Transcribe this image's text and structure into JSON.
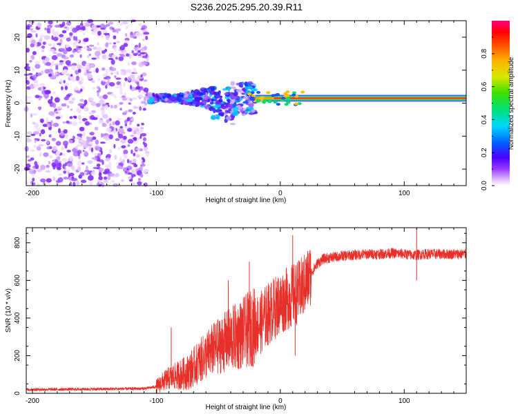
{
  "title": "S236.2025.295.20.39.R11",
  "chart_data": [
    {
      "type": "heatmap",
      "xlabel": "Height of straight line (km)",
      "ylabel": "Frequency (Hz)",
      "xlim": [
        -205,
        150
      ],
      "ylim": [
        -25,
        25
      ],
      "xticks": [
        -200,
        -100,
        0,
        100
      ],
      "xtick_labels": [
        "-200",
        "-100",
        "0",
        "100"
      ],
      "yticks": [
        -20,
        -10,
        0,
        10,
        20
      ],
      "ytick_labels": [
        "-20",
        "-10",
        "0",
        "10",
        "20"
      ],
      "colorbar": {
        "label": "Normalized spectral amplitude",
        "range": [
          0,
          1
        ],
        "ticks": [
          0.0,
          0.2,
          0.4,
          0.6,
          0.8
        ],
        "tick_labels": [
          "0.0",
          "0.2",
          "0.4",
          "0.6",
          "0.8"
        ]
      },
      "features": {
        "noise_region_x": [
          -205,
          -107
        ],
        "scatter_region_x": [
          -107,
          -20
        ],
        "tone_region_x": [
          -20,
          150
        ],
        "tone_frequency_hz": 1.5
      }
    },
    {
      "type": "line",
      "xlabel": "Height of straight line (km)",
      "ylabel": "SNR (10 * v/v)",
      "xlim": [
        -205,
        150
      ],
      "ylim": [
        0,
        880
      ],
      "xticks": [
        -200,
        -100,
        0,
        100
      ],
      "xtick_labels": [
        "-200",
        "-100",
        "0",
        "100"
      ],
      "yticks": [
        0,
        200,
        400,
        600,
        800
      ],
      "ytick_labels": [
        "0",
        "200",
        "400",
        "600",
        "800"
      ],
      "color": "#e8302a",
      "series": [
        {
          "name": "SNR",
          "x": [
            -205,
            -150,
            -110,
            -100,
            -95,
            -90,
            -85,
            -80,
            -75,
            -70,
            -65,
            -60,
            -55,
            -50,
            -45,
            -40,
            -35,
            -30,
            -25,
            -20,
            -15,
            -10,
            -5,
            0,
            5,
            10,
            15,
            20,
            25,
            30,
            35,
            40,
            50,
            60,
            70,
            80,
            90,
            100,
            105,
            110,
            115,
            120,
            130,
            140,
            150
          ],
          "y": [
            20,
            22,
            25,
            35,
            60,
            80,
            90,
            100,
            110,
            140,
            170,
            200,
            230,
            250,
            270,
            290,
            300,
            320,
            340,
            360,
            380,
            420,
            450,
            480,
            500,
            520,
            540,
            580,
            640,
            690,
            715,
            720,
            730,
            735,
            740,
            740,
            745,
            740,
            735,
            735,
            740,
            740,
            740,
            740,
            740
          ]
        }
      ],
      "spikes": [
        {
          "x": -88,
          "y": 350
        },
        {
          "x": -42,
          "y": 600
        },
        {
          "x": -25,
          "y": 700
        },
        {
          "x": 10,
          "y": 840
        },
        {
          "x": 12,
          "y": 200
        },
        {
          "x": 110,
          "y": 880
        },
        {
          "x": 110,
          "y": 600
        }
      ]
    }
  ]
}
